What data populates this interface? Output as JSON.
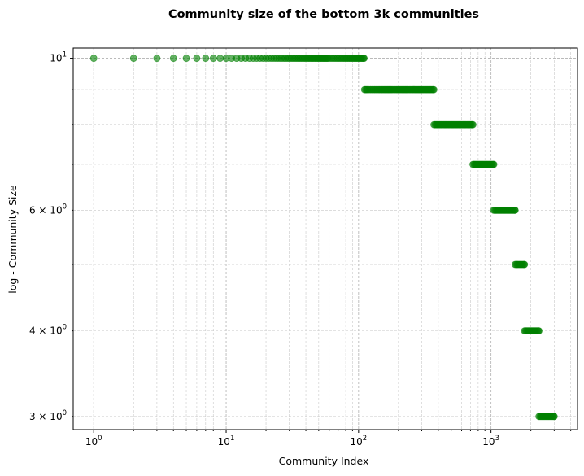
{
  "chart_data": {
    "type": "scatter",
    "title": "Community size of the bottom 3k communities",
    "xlabel": "Community Index",
    "ylabel": "log - Community Size",
    "xscale": "log",
    "yscale": "log",
    "xlim": [
      0.7,
      4500
    ],
    "ylim": [
      2.87,
      10.35
    ],
    "grid": "major and minor, dashed",
    "marker_color": "#008000",
    "marker_alpha": 0.6,
    "x_ticks": [
      {
        "base": "10",
        "exp": "0",
        "value": 1
      },
      {
        "base": "10",
        "exp": "1",
        "value": 10
      },
      {
        "base": "10",
        "exp": "2",
        "value": 100
      },
      {
        "base": "10",
        "exp": "3",
        "value": 1000
      }
    ],
    "y_ticks": [
      {
        "base": "10",
        "exp": "1",
        "value": 10,
        "prefix": ""
      },
      {
        "base": "10",
        "exp": "0",
        "value": 6,
        "prefix": "6 × "
      },
      {
        "base": "10",
        "exp": "0",
        "value": 4,
        "prefix": "4 × "
      },
      {
        "base": "10",
        "exp": "0",
        "value": 3,
        "prefix": "3 × "
      }
    ],
    "groups": [
      {
        "size": 10,
        "x_start": 1,
        "x_end": 110
      },
      {
        "size": 9,
        "x_start": 111,
        "x_end": 370
      },
      {
        "size": 8,
        "x_start": 371,
        "x_end": 730
      },
      {
        "size": 7,
        "x_start": 731,
        "x_end": 1050
      },
      {
        "size": 6,
        "x_start": 1051,
        "x_end": 1520
      },
      {
        "size": 5,
        "x_start": 1521,
        "x_end": 1790
      },
      {
        "size": 4,
        "x_start": 1791,
        "x_end": 2300
      },
      {
        "size": 3,
        "x_start": 2301,
        "x_end": 3000
      }
    ]
  }
}
